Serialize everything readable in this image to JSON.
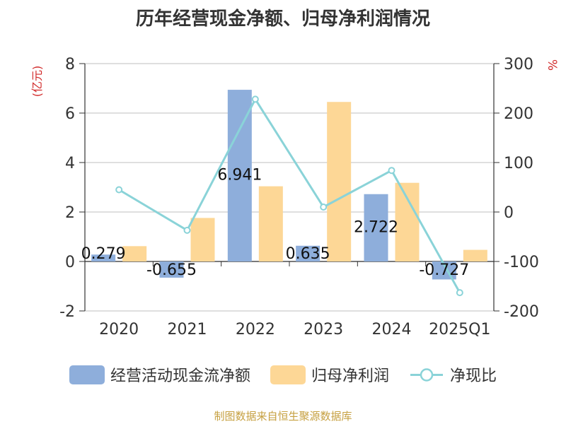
{
  "title": "历年经营现金净额、归母净利润情况",
  "source": "制图数据来自恒生聚源数据库",
  "colors": {
    "cash": "#8eaedb",
    "profit": "#fdd796",
    "ratio": "#8ad3d8",
    "axis": "#333333",
    "grid": "#cccccc",
    "unit": "#d12a2a",
    "source": "#c6a040"
  },
  "legend": {
    "cash": "经营活动现金流净额",
    "profit": "归母净利润",
    "ratio": "净现比"
  },
  "chart_data": {
    "type": "bar",
    "title": "历年经营现金净额、归母净利润情况",
    "categories": [
      "2020",
      "2021",
      "2022",
      "2023",
      "2024",
      "2025Q1"
    ],
    "y_left": {
      "unit": "(亿元)",
      "ylim": [
        -2,
        8
      ],
      "ticks": [
        "-2",
        "0",
        "2",
        "4",
        "6",
        "8"
      ]
    },
    "y_right": {
      "unit": "%",
      "ylim": [
        -200,
        300
      ],
      "ticks": [
        "-200",
        "-100",
        "0",
        "100",
        "200",
        "300"
      ]
    },
    "series": [
      {
        "name": "经营活动现金流净额",
        "type": "bar",
        "axis": "left",
        "values": [
          0.279,
          -0.655,
          6.941,
          0.635,
          2.722,
          -0.727
        ],
        "labels": [
          "0.279",
          "-0.655",
          "6.941",
          "0.635",
          "2.722",
          "-0.727"
        ]
      },
      {
        "name": "归母净利润",
        "type": "bar",
        "axis": "left",
        "values": [
          0.62,
          1.76,
          3.04,
          6.45,
          3.18,
          0.47
        ]
      },
      {
        "name": "净现比",
        "type": "line",
        "axis": "right",
        "values": [
          45,
          -37,
          228,
          10,
          84,
          -163
        ]
      }
    ],
    "grid": true,
    "legend_position": "bottom"
  }
}
